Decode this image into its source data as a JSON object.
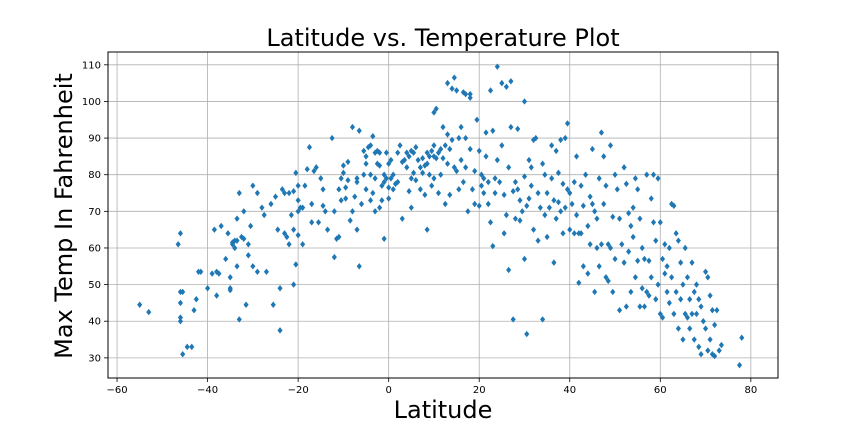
{
  "chart_data": {
    "type": "scatter",
    "title": "Latitude vs. Temperature Plot",
    "xlabel": "Latitude",
    "ylabel": "Max Temp In Fahrenheit",
    "xlim": [
      -62,
      86
    ],
    "ylim": [
      24.5,
      113.5
    ],
    "xticks": [
      -60,
      -40,
      -20,
      0,
      20,
      40,
      60,
      80
    ],
    "yticks": [
      30,
      40,
      50,
      60,
      70,
      80,
      90,
      100,
      110
    ],
    "grid": true,
    "marker": "diamond",
    "colors": {
      "marker": "#1f77b4",
      "grid": "#b0b0b0",
      "axes": "#000000"
    },
    "points": [
      [
        -55,
        44.5
      ],
      [
        -53,
        42.5
      ],
      [
        -46,
        64
      ],
      [
        -46.5,
        61
      ],
      [
        -46,
        48
      ],
      [
        -45.5,
        48
      ],
      [
        -46,
        45
      ],
      [
        -46,
        41
      ],
      [
        -46,
        40
      ],
      [
        -45.5,
        31
      ],
      [
        -44.5,
        33
      ],
      [
        -43.5,
        33
      ],
      [
        -43,
        43
      ],
      [
        -42.5,
        46
      ],
      [
        -42,
        53.5
      ],
      [
        -41.5,
        53.5
      ],
      [
        -40,
        49
      ],
      [
        -39,
        53
      ],
      [
        -38.5,
        65
      ],
      [
        -38,
        53.5
      ],
      [
        -38,
        47
      ],
      [
        -37.5,
        53
      ],
      [
        -37,
        66
      ],
      [
        -36,
        57
      ],
      [
        -35.5,
        64
      ],
      [
        -35,
        52
      ],
      [
        -35,
        49
      ],
      [
        -35,
        48.5
      ],
      [
        -34.5,
        61
      ],
      [
        -34.5,
        61.5
      ],
      [
        -34,
        62
      ],
      [
        -34,
        60
      ],
      [
        -33.5,
        68
      ],
      [
        -33.5,
        62
      ],
      [
        -33.5,
        55
      ],
      [
        -33,
        75
      ],
      [
        -33,
        40.5
      ],
      [
        -32.5,
        63
      ],
      [
        -32,
        70
      ],
      [
        -32,
        62.5
      ],
      [
        -31.5,
        44.5
      ],
      [
        -31,
        61
      ],
      [
        -31,
        58
      ],
      [
        -30.5,
        66
      ],
      [
        -30,
        77
      ],
      [
        -30,
        55
      ],
      [
        -29,
        75
      ],
      [
        -29,
        53.5
      ],
      [
        -28,
        71
      ],
      [
        -27.5,
        69
      ],
      [
        -27,
        53.5
      ],
      [
        -26,
        72
      ],
      [
        -25,
        74
      ],
      [
        -25.5,
        44.5
      ],
      [
        -24.5,
        65
      ],
      [
        -24,
        49
      ],
      [
        -24,
        37.5
      ],
      [
        -23.5,
        76
      ],
      [
        -23,
        75
      ],
      [
        -23,
        64
      ],
      [
        -22.5,
        63
      ],
      [
        -22,
        75
      ],
      [
        -22,
        61
      ],
      [
        -21.5,
        69
      ],
      [
        -21,
        75.5
      ],
      [
        -21,
        65
      ],
      [
        -21,
        50
      ],
      [
        -20.5,
        80.5
      ],
      [
        -20.5,
        55.5
      ],
      [
        -20,
        77
      ],
      [
        -20,
        73
      ],
      [
        -20,
        70
      ],
      [
        -20,
        63.5
      ],
      [
        -19.5,
        71
      ],
      [
        -19,
        71
      ],
      [
        -19,
        61
      ],
      [
        -18.5,
        77
      ],
      [
        -18,
        81.5
      ],
      [
        -17.5,
        87.5
      ],
      [
        -17,
        72
      ],
      [
        -17,
        67
      ],
      [
        -16.5,
        81
      ],
      [
        -16,
        82
      ],
      [
        -15.5,
        67
      ],
      [
        -15,
        79
      ],
      [
        -14.5,
        76
      ],
      [
        -14.5,
        71.5
      ],
      [
        -14,
        70
      ],
      [
        -13.5,
        65
      ],
      [
        -12.5,
        90
      ],
      [
        -12,
        57.5
      ],
      [
        -12,
        70
      ],
      [
        -11.5,
        62.5
      ],
      [
        -11,
        63
      ],
      [
        -11,
        76
      ],
      [
        -10.5,
        79
      ],
      [
        -10.5,
        73
      ],
      [
        -10,
        82.5
      ],
      [
        -10,
        80.5
      ],
      [
        -9.5,
        76.5
      ],
      [
        -9.5,
        73.5
      ],
      [
        -9,
        78.5
      ],
      [
        -9,
        83.5
      ],
      [
        -8.5,
        67.5
      ],
      [
        -8,
        93
      ],
      [
        -8,
        70
      ],
      [
        -7.5,
        74
      ],
      [
        -7,
        78
      ],
      [
        -7,
        79
      ],
      [
        -7,
        65
      ],
      [
        -6.5,
        92
      ],
      [
        -6.5,
        55
      ],
      [
        -6,
        72
      ],
      [
        -5.5,
        86.5
      ],
      [
        -5.5,
        80
      ],
      [
        -5,
        85
      ],
      [
        -5,
        83
      ],
      [
        -5,
        76
      ],
      [
        -4.5,
        87.5
      ],
      [
        -4,
        88
      ],
      [
        -4,
        80
      ],
      [
        -4,
        73
      ],
      [
        -3.5,
        90.5
      ],
      [
        -3.5,
        75
      ],
      [
        -3,
        86
      ],
      [
        -3,
        79
      ],
      [
        -3,
        70
      ],
      [
        -2.5,
        86.5
      ],
      [
        -2.5,
        83
      ],
      [
        -2,
        86
      ],
      [
        -2,
        82.5
      ],
      [
        -2,
        71
      ],
      [
        -1.5,
        77
      ],
      [
        -1.5,
        73
      ],
      [
        -1,
        80
      ],
      [
        -1,
        78
      ],
      [
        -1,
        62.5
      ],
      [
        -0.5,
        86
      ],
      [
        -0.5,
        79
      ],
      [
        0,
        76.5
      ],
      [
        0,
        73.5
      ],
      [
        0,
        83
      ],
      [
        0.5,
        84
      ],
      [
        0.5,
        79
      ],
      [
        1,
        80
      ],
      [
        1,
        76
      ],
      [
        1.5,
        77.5
      ],
      [
        2,
        86
      ],
      [
        2,
        78
      ],
      [
        2.5,
        88
      ],
      [
        3,
        83.5
      ],
      [
        3,
        68
      ],
      [
        3.5,
        84
      ],
      [
        4,
        86
      ],
      [
        4,
        82
      ],
      [
        4.5,
        85
      ],
      [
        4.5,
        75.5
      ],
      [
        5,
        86.5
      ],
      [
        5,
        79
      ],
      [
        5,
        71
      ],
      [
        5.5,
        86
      ],
      [
        5.5,
        80.5
      ],
      [
        6,
        87.5
      ],
      [
        6,
        78.5
      ],
      [
        6.5,
        84
      ],
      [
        7,
        82
      ],
      [
        7,
        76
      ],
      [
        7.5,
        84.5
      ],
      [
        7.5,
        80.5
      ],
      [
        8,
        82.5
      ],
      [
        8,
        74.5
      ],
      [
        8.5,
        86
      ],
      [
        8.5,
        83
      ],
      [
        8.5,
        65
      ],
      [
        9,
        85
      ],
      [
        9,
        80
      ],
      [
        9.5,
        86.5
      ],
      [
        9.5,
        77
      ],
      [
        10,
        97
      ],
      [
        10,
        88
      ],
      [
        10,
        85
      ],
      [
        10,
        79
      ],
      [
        10.5,
        98
      ],
      [
        10.5,
        84.5
      ],
      [
        11,
        86
      ],
      [
        11,
        75
      ],
      [
        11.5,
        87
      ],
      [
        11.5,
        80
      ],
      [
        12,
        93
      ],
      [
        12,
        84.5
      ],
      [
        12.5,
        88
      ],
      [
        12.5,
        72
      ],
      [
        13,
        105
      ],
      [
        13,
        91
      ],
      [
        13,
        83
      ],
      [
        13.5,
        87
      ],
      [
        13.5,
        74.5
      ],
      [
        14,
        103.5
      ],
      [
        14,
        89.5
      ],
      [
        14.5,
        106.5
      ],
      [
        14.5,
        82
      ],
      [
        15,
        103
      ],
      [
        15,
        81
      ],
      [
        15.5,
        90
      ],
      [
        15.5,
        76
      ],
      [
        16,
        93
      ],
      [
        16,
        84
      ],
      [
        16.5,
        102.5
      ],
      [
        16.5,
        78
      ],
      [
        17,
        102
      ],
      [
        17,
        90
      ],
      [
        17,
        82
      ],
      [
        17.5,
        70
      ],
      [
        18,
        101
      ],
      [
        18,
        102
      ],
      [
        18,
        87
      ],
      [
        18.5,
        76
      ],
      [
        19,
        72
      ],
      [
        19,
        81
      ],
      [
        19.5,
        95
      ],
      [
        20,
        86.5
      ],
      [
        20,
        71.5
      ],
      [
        20.5,
        80
      ],
      [
        20.5,
        77
      ],
      [
        21,
        79
      ],
      [
        21,
        75
      ],
      [
        21.5,
        91.5
      ],
      [
        21.5,
        85
      ],
      [
        22,
        78
      ],
      [
        22,
        72
      ],
      [
        22.5,
        103
      ],
      [
        22.5,
        67
      ],
      [
        23,
        92
      ],
      [
        23,
        60.5
      ],
      [
        23.5,
        79
      ],
      [
        23.5,
        75
      ],
      [
        24,
        109.5
      ],
      [
        24,
        84
      ],
      [
        24.5,
        78
      ],
      [
        25,
        105
      ],
      [
        25,
        88
      ],
      [
        25.5,
        74.5
      ],
      [
        25.5,
        64
      ],
      [
        26,
        104
      ],
      [
        26,
        69
      ],
      [
        26.5,
        82
      ],
      [
        26.5,
        54
      ],
      [
        27,
        105.5
      ],
      [
        27,
        93
      ],
      [
        27.5,
        75.5
      ],
      [
        27.5,
        40.5
      ],
      [
        28,
        78
      ],
      [
        28,
        68
      ],
      [
        28.5,
        92.5
      ],
      [
        28.5,
        76
      ],
      [
        29,
        73
      ],
      [
        29,
        67.5
      ],
      [
        29.5,
        70
      ],
      [
        30,
        100
      ],
      [
        30,
        79.5
      ],
      [
        30,
        57
      ],
      [
        30.5,
        71.5
      ],
      [
        30.5,
        36.5
      ],
      [
        31,
        84
      ],
      [
        31,
        73.5
      ],
      [
        31.5,
        82
      ],
      [
        31.5,
        77
      ],
      [
        32,
        89.5
      ],
      [
        32,
        65
      ],
      [
        32.5,
        90
      ],
      [
        33,
        75
      ],
      [
        33,
        62
      ],
      [
        33.5,
        71
      ],
      [
        34,
        83
      ],
      [
        34,
        40.5
      ],
      [
        34.5,
        80
      ],
      [
        34.5,
        69
      ],
      [
        35,
        75
      ],
      [
        35,
        63
      ],
      [
        35.5,
        71
      ],
      [
        36,
        88
      ],
      [
        36,
        79
      ],
      [
        36.5,
        73
      ],
      [
        36.5,
        56
      ],
      [
        37,
        86.5
      ],
      [
        37,
        68
      ],
      [
        37.5,
        80.5
      ],
      [
        37.5,
        72.5
      ],
      [
        38,
        89.5
      ],
      [
        38,
        70
      ],
      [
        38.5,
        77.5
      ],
      [
        38.5,
        64
      ],
      [
        39,
        90
      ],
      [
        39,
        71
      ],
      [
        39.5,
        94
      ],
      [
        39.5,
        76
      ],
      [
        40,
        75
      ],
      [
        40,
        65
      ],
      [
        40.5,
        72
      ],
      [
        41,
        78
      ],
      [
        41,
        64
      ],
      [
        41.5,
        85
      ],
      [
        41.5,
        69
      ],
      [
        42,
        64
      ],
      [
        42,
        50.5
      ],
      [
        42.5,
        77
      ],
      [
        42.5,
        64
      ],
      [
        43,
        71.5
      ],
      [
        43,
        55
      ],
      [
        43.5,
        80
      ],
      [
        44,
        66
      ],
      [
        44,
        53
      ],
      [
        44.5,
        74
      ],
      [
        44.5,
        61
      ],
      [
        45,
        87
      ],
      [
        45,
        72
      ],
      [
        45.5,
        70
      ],
      [
        45.5,
        48
      ],
      [
        46,
        60
      ],
      [
        46,
        68
      ],
      [
        46.5,
        79
      ],
      [
        46.5,
        55
      ],
      [
        47,
        91.5
      ],
      [
        47,
        61
      ],
      [
        47.5,
        85
      ],
      [
        47.5,
        72
      ],
      [
        48,
        77
      ],
      [
        48,
        52
      ],
      [
        48.5,
        61
      ],
      [
        48.5,
        51
      ],
      [
        49,
        88
      ],
      [
        49,
        60
      ],
      [
        49.5,
        68.5
      ],
      [
        49.5,
        48
      ],
      [
        50,
        80
      ],
      [
        50,
        57
      ],
      [
        50.5,
        76
      ],
      [
        51,
        68
      ],
      [
        51,
        43
      ],
      [
        51.5,
        61
      ],
      [
        52,
        82
      ],
      [
        52,
        56
      ],
      [
        52.5,
        77.5
      ],
      [
        52.5,
        44
      ],
      [
        53,
        69.5
      ],
      [
        53,
        59
      ],
      [
        53.5,
        66
      ],
      [
        53.5,
        48
      ],
      [
        54,
        71
      ],
      [
        54,
        63
      ],
      [
        54.5,
        79
      ],
      [
        54.5,
        52
      ],
      [
        55,
        76
      ],
      [
        55,
        56.5
      ],
      [
        55.5,
        68
      ],
      [
        55.5,
        44
      ],
      [
        56,
        60
      ],
      [
        56,
        49
      ],
      [
        56.5,
        57
      ],
      [
        56.5,
        44
      ],
      [
        57,
        80
      ],
      [
        57,
        48
      ],
      [
        57.5,
        56.5
      ],
      [
        57.5,
        47
      ],
      [
        58,
        73.5
      ],
      [
        58,
        52
      ],
      [
        58.5,
        80
      ],
      [
        58.5,
        67
      ],
      [
        59,
        62
      ],
      [
        59,
        46
      ],
      [
        59.5,
        79
      ],
      [
        59.5,
        50
      ],
      [
        60,
        67
      ],
      [
        60,
        42
      ],
      [
        60.5,
        57
      ],
      [
        60.5,
        41
      ],
      [
        61,
        61
      ],
      [
        61,
        53
      ],
      [
        61.5,
        55
      ],
      [
        61.5,
        48
      ],
      [
        62,
        60
      ],
      [
        62,
        45
      ],
      [
        62.5,
        72
      ],
      [
        62.5,
        52
      ],
      [
        63,
        71.5
      ],
      [
        63,
        42
      ],
      [
        63.5,
        64
      ],
      [
        63.5,
        48
      ],
      [
        64,
        62
      ],
      [
        64,
        38
      ],
      [
        64.5,
        56
      ],
      [
        64.5,
        46
      ],
      [
        65,
        50
      ],
      [
        65,
        35
      ],
      [
        65.5,
        60
      ],
      [
        65.5,
        42
      ],
      [
        66,
        52
      ],
      [
        66,
        41
      ],
      [
        66.5,
        46
      ],
      [
        66.5,
        38
      ],
      [
        67,
        56
      ],
      [
        67,
        42
      ],
      [
        67.5,
        48
      ],
      [
        67.5,
        35
      ],
      [
        68,
        50
      ],
      [
        68,
        42
      ],
      [
        68.5,
        46
      ],
      [
        68.5,
        33
      ],
      [
        69,
        44
      ],
      [
        69,
        31
      ],
      [
        69.5,
        40
      ],
      [
        70,
        53.5
      ],
      [
        70,
        38
      ],
      [
        70.5,
        52
      ],
      [
        70.5,
        32
      ],
      [
        71,
        47
      ],
      [
        71,
        35
      ],
      [
        71.5,
        43
      ],
      [
        71.5,
        31
      ],
      [
        72,
        39
      ],
      [
        72,
        30.5
      ],
      [
        72.5,
        43
      ],
      [
        73,
        32
      ],
      [
        73.5,
        33.5
      ],
      [
        77.5,
        28
      ],
      [
        78,
        35.5
      ]
    ]
  }
}
